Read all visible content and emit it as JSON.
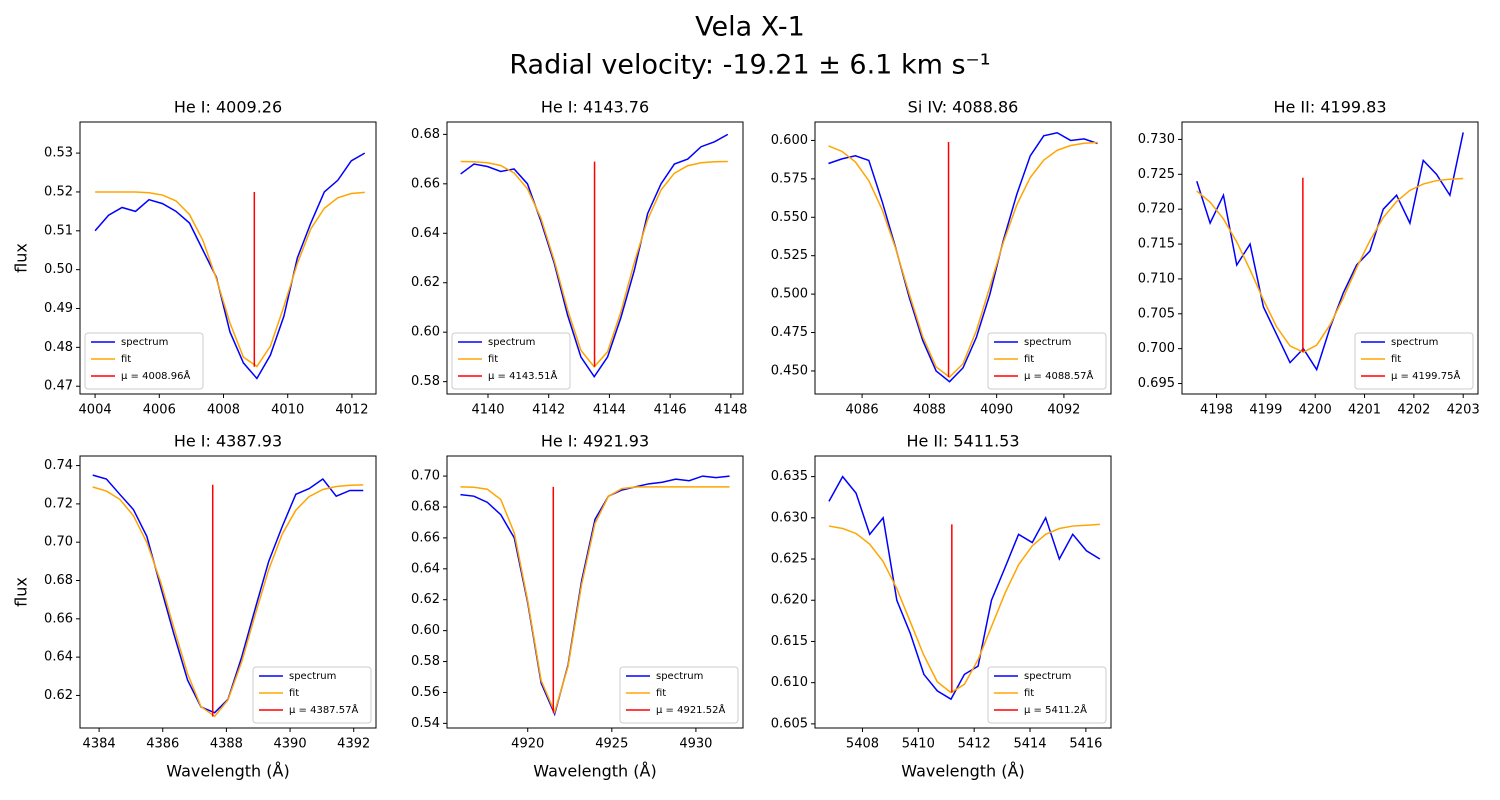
{
  "title": "Vela X-1",
  "subtitle": "Radial velocity: -19.21 ± 6.1 km s⁻¹",
  "chart_data": [
    {
      "type": "line",
      "title": "He I: 4009.26",
      "ylabel": "flux",
      "legend": "lower left",
      "x": [
        4004.0,
        4004.42,
        4004.84,
        4005.26,
        4005.68,
        4006.1,
        4006.52,
        4006.94,
        4007.36,
        4007.78,
        4008.2,
        4008.62,
        4009.04,
        4009.46,
        4009.88,
        4010.3,
        4010.72,
        4011.14,
        4011.56,
        4011.98,
        4012.4
      ],
      "series": [
        {
          "name": "spectrum",
          "color": "blue",
          "values": [
            0.51,
            0.514,
            0.516,
            0.515,
            0.518,
            0.517,
            0.515,
            0.512,
            0.505,
            0.498,
            0.484,
            0.476,
            0.472,
            0.478,
            0.488,
            0.503,
            0.512,
            0.52,
            0.523,
            0.528,
            0.53
          ]
        },
        {
          "name": "fit",
          "color": "orange",
          "values": [
            0.52,
            0.52,
            0.52,
            0.52,
            0.5198,
            0.5192,
            0.5177,
            0.5142,
            0.5075,
            0.4976,
            0.4863,
            0.4775,
            0.4751,
            0.4803,
            0.4905,
            0.5016,
            0.5105,
            0.5158,
            0.5185,
            0.5196,
            0.5199
          ]
        }
      ],
      "vline": {
        "name": "μ = 4008.96Å",
        "color": "red",
        "x": 4008.96,
        "values": [
          0.475,
          0.52
        ]
      },
      "xlim": [
        4003.53,
        4012.75
      ],
      "xticks": [
        4004,
        4006,
        4008,
        4010,
        4012
      ],
      "ylim": [
        0.468,
        0.538
      ],
      "yticks": [
        0.47,
        0.48,
        0.49,
        {
          "value": 0.5,
          "label": "0.50"
        },
        0.51,
        0.52,
        0.53
      ]
    },
    {
      "type": "line",
      "title": "He I: 4143.76",
      "legend": "lower left",
      "x": [
        4139.1,
        4139.54,
        4139.98,
        4140.42,
        4140.86,
        4141.3,
        4141.74,
        4142.18,
        4142.62,
        4143.06,
        4143.5,
        4143.94,
        4144.38,
        4144.82,
        4145.26,
        4145.7,
        4146.14,
        4146.58,
        4147.02,
        4147.46,
        4147.9
      ],
      "series": [
        {
          "name": "spectrum",
          "color": "blue",
          "values": [
            0.664,
            0.668,
            0.667,
            0.665,
            0.666,
            0.66,
            0.645,
            0.628,
            0.607,
            0.59,
            0.582,
            0.59,
            0.606,
            0.625,
            0.648,
            0.66,
            0.668,
            0.67,
            0.675,
            0.677,
            0.68
          ]
        },
        {
          "name": "fit",
          "color": "orange",
          "values": [
            0.669,
            0.6689,
            0.6685,
            0.6674,
            0.6644,
            0.658,
            0.6462,
            0.6291,
            0.6092,
            0.5927,
            0.586,
            0.5921,
            0.6083,
            0.6282,
            0.6456,
            0.6575,
            0.6643,
            0.6673,
            0.6685,
            0.6689,
            0.669
          ]
        }
      ],
      "vline": {
        "name": "μ = 4143.51Å",
        "color": "red",
        "x": 4143.51,
        "values": [
          0.586,
          0.669
        ]
      },
      "xlim": [
        4138.65,
        4148.4
      ],
      "xticks": [
        4140,
        4142,
        4144,
        4146,
        4148
      ],
      "ylim": [
        0.575,
        0.685
      ],
      "yticks": [
        0.58,
        {
          "value": 0.6,
          "label": "0.60"
        },
        0.62,
        0.64,
        0.66,
        0.68
      ]
    },
    {
      "type": "line",
      "title": "Si IV: 4088.86",
      "legend": "lower right",
      "x": [
        4085.0,
        4085.4,
        4085.8,
        4086.2,
        4086.6,
        4087.0,
        4087.4,
        4087.8,
        4088.2,
        4088.6,
        4089.0,
        4089.4,
        4089.8,
        4090.2,
        4090.6,
        4091.0,
        4091.4,
        4091.8,
        4092.2,
        4092.6,
        4093.0
      ],
      "series": [
        {
          "name": "spectrum",
          "color": "blue",
          "values": [
            0.585,
            0.588,
            0.59,
            0.587,
            0.56,
            0.53,
            0.498,
            0.47,
            0.45,
            0.443,
            0.452,
            0.472,
            0.5,
            0.535,
            0.565,
            0.59,
            0.603,
            0.605,
            0.6,
            0.601,
            0.598
          ]
        },
        {
          "name": "fit",
          "color": "orange",
          "values": [
            0.5964,
            0.5929,
            0.586,
            0.5738,
            0.5548,
            0.5295,
            0.5003,
            0.4725,
            0.4526,
            0.446,
            0.4547,
            0.4763,
            0.5048,
            0.5337,
            0.5581,
            0.5759,
            0.5872,
            0.5936,
            0.5967,
            0.5982,
            0.5987
          ]
        }
      ],
      "vline": {
        "name": "μ = 4088.57Å",
        "color": "red",
        "x": 4088.57,
        "values": [
          0.446,
          0.599
        ]
      },
      "xlim": [
        4084.6,
        4093.4
      ],
      "xticks": [
        4086,
        4088,
        4090,
        4092
      ],
      "ylim": [
        0.435,
        0.612
      ],
      "yticks": [
        {
          "value": 0.45,
          "label": "0.450"
        },
        0.475,
        {
          "value": 0.5,
          "label": "0.500"
        },
        0.525,
        {
          "value": 0.55,
          "label": "0.550"
        },
        0.575,
        {
          "value": 0.6,
          "label": "0.600"
        }
      ]
    },
    {
      "type": "line",
      "title": "He II: 4199.83",
      "legend": "lower right",
      "x": [
        4197.6,
        4197.87,
        4198.14,
        4198.41,
        4198.68,
        4198.95,
        4199.22,
        4199.49,
        4199.76,
        4200.03,
        4200.3,
        4200.57,
        4200.84,
        4201.11,
        4201.38,
        4201.65,
        4201.92,
        4202.19,
        4202.46,
        4202.73,
        4203.0
      ],
      "series": [
        {
          "name": "spectrum",
          "color": "blue",
          "values": [
            0.724,
            0.718,
            0.722,
            0.712,
            0.715,
            0.706,
            0.702,
            0.698,
            0.7,
            0.697,
            0.703,
            0.708,
            0.712,
            0.714,
            0.72,
            0.722,
            0.718,
            0.727,
            0.725,
            0.722,
            0.731
          ]
        },
        {
          "name": "fit",
          "color": "orange",
          "values": [
            0.7226,
            0.721,
            0.7186,
            0.7153,
            0.7113,
            0.707,
            0.7031,
            0.7004,
            0.6995,
            0.7005,
            0.7034,
            0.7073,
            0.7116,
            0.7155,
            0.7188,
            0.7211,
            0.7227,
            0.7236,
            0.7241,
            0.7243,
            0.7244
          ]
        }
      ],
      "vline": {
        "name": "μ = 4199.75Å",
        "color": "red",
        "x": 4199.75,
        "values": [
          0.6995,
          0.7245
        ]
      },
      "xlim": [
        4197.3,
        4203.3
      ],
      "xticks": [
        4198,
        4199,
        4200,
        4201,
        4202,
        4203
      ],
      "ylim": [
        0.6935,
        0.7325
      ],
      "yticks": [
        0.695,
        {
          "value": 0.7,
          "label": "0.700"
        },
        0.705,
        {
          "value": 0.71,
          "label": "0.710"
        },
        0.715,
        {
          "value": 0.72,
          "label": "0.720"
        },
        0.725,
        {
          "value": 0.73,
          "label": "0.730"
        }
      ]
    },
    {
      "type": "line",
      "title": "He I: 4387.93",
      "ylabel": "flux",
      "xlabel": "Wavelength (Å)",
      "legend": "lower right",
      "x": [
        4383.8,
        4384.23,
        4384.65,
        4385.08,
        4385.5,
        4385.93,
        4386.35,
        4386.78,
        4387.2,
        4387.63,
        4388.05,
        4388.48,
        4388.9,
        4389.33,
        4389.75,
        4390.18,
        4390.6,
        4391.03,
        4391.45,
        4391.88,
        4392.3
      ],
      "series": [
        {
          "name": "spectrum",
          "color": "blue",
          "values": [
            0.735,
            0.733,
            0.725,
            0.717,
            0.703,
            0.677,
            0.652,
            0.628,
            0.614,
            0.611,
            0.618,
            0.64,
            0.665,
            0.69,
            0.708,
            0.725,
            0.728,
            0.733,
            0.724,
            0.727,
            0.727
          ]
        },
        {
          "name": "fit",
          "color": "orange",
          "values": [
            0.7288,
            0.7267,
            0.7224,
            0.7138,
            0.6999,
            0.6794,
            0.6553,
            0.6313,
            0.6142,
            0.6091,
            0.6177,
            0.6376,
            0.6619,
            0.6857,
            0.7041,
            0.7167,
            0.7238,
            0.7275,
            0.7291,
            0.7297,
            0.7299
          ]
        }
      ],
      "vline": {
        "name": "μ = 4387.57Å",
        "color": "red",
        "x": 4387.57,
        "values": [
          0.609,
          0.73
        ]
      },
      "xlim": [
        4383.4,
        4392.7
      ],
      "xticks": [
        4384,
        4386,
        4388,
        4390,
        4392
      ],
      "ylim": [
        0.603,
        0.745
      ],
      "yticks": [
        0.62,
        0.64,
        0.66,
        0.68,
        {
          "value": 0.7,
          "label": "0.70"
        },
        0.72,
        0.74
      ]
    },
    {
      "type": "line",
      "title": "He I: 4921.93",
      "xlabel": "Wavelength (Å)",
      "legend": "lower right",
      "x": [
        4916.0,
        4916.8,
        4917.6,
        4918.4,
        4919.2,
        4920.0,
        4920.8,
        4921.6,
        4922.4,
        4923.2,
        4924.0,
        4924.8,
        4925.6,
        4926.4,
        4927.2,
        4928.0,
        4928.8,
        4929.6,
        4930.4,
        4931.2,
        4932.0
      ],
      "series": [
        {
          "name": "spectrum",
          "color": "blue",
          "values": [
            0.688,
            0.687,
            0.683,
            0.675,
            0.66,
            0.618,
            0.566,
            0.546,
            0.578,
            0.632,
            0.672,
            0.687,
            0.691,
            0.693,
            0.695,
            0.696,
            0.698,
            0.697,
            0.7,
            0.699,
            0.7
          ]
        },
        {
          "name": "fit",
          "color": "orange",
          "values": [
            0.693,
            0.6928,
            0.6915,
            0.6848,
            0.6632,
            0.6193,
            0.5677,
            0.5473,
            0.5769,
            0.6296,
            0.6694,
            0.6869,
            0.6919,
            0.6929,
            0.693,
            0.693,
            0.693,
            0.693,
            0.693,
            0.693,
            0.693
          ]
        }
      ],
      "vline": {
        "name": "μ = 4921.52Å",
        "color": "red",
        "x": 4921.52,
        "values": [
          0.547,
          0.693
        ]
      },
      "xlim": [
        4915.2,
        4932.8
      ],
      "xticks": [
        4920,
        4925,
        4930
      ],
      "ylim": [
        0.537,
        0.713
      ],
      "yticks": [
        0.54,
        0.56,
        0.58,
        {
          "value": 0.6,
          "label": "0.60"
        },
        0.62,
        0.64,
        0.66,
        0.68,
        {
          "value": 0.7,
          "label": "0.70"
        }
      ]
    },
    {
      "type": "line",
      "title": "He II: 5411.53",
      "xlabel": "Wavelength (Å)",
      "legend": "lower right",
      "x": [
        5406.8,
        5407.29,
        5407.77,
        5408.26,
        5408.74,
        5409.23,
        5409.71,
        5410.2,
        5410.68,
        5411.17,
        5411.65,
        5412.14,
        5412.62,
        5413.11,
        5413.59,
        5414.08,
        5414.56,
        5415.05,
        5415.53,
        5416.02,
        5416.5
      ],
      "series": [
        {
          "name": "spectrum",
          "color": "blue",
          "values": [
            0.632,
            0.635,
            0.633,
            0.628,
            0.63,
            0.62,
            0.616,
            0.611,
            0.609,
            0.608,
            0.611,
            0.612,
            0.62,
            0.624,
            0.628,
            0.627,
            0.63,
            0.625,
            0.628,
            0.626,
            0.625
          ]
        },
        {
          "name": "fit",
          "color": "orange",
          "values": [
            0.629,
            0.6287,
            0.6281,
            0.6268,
            0.6247,
            0.6214,
            0.6174,
            0.6133,
            0.6101,
            0.6088,
            0.6098,
            0.6128,
            0.6168,
            0.6209,
            0.6243,
            0.6266,
            0.628,
            0.6287,
            0.629,
            0.6291,
            0.6292
          ]
        }
      ],
      "vline": {
        "name": "μ = 5411.2Å",
        "color": "red",
        "x": 5411.2,
        "values": [
          0.6088,
          0.6292
        ]
      },
      "xlim": [
        5406.3,
        5416.9
      ],
      "xticks": [
        5408,
        5410,
        5412,
        5414,
        5416
      ],
      "ylim": [
        0.6045,
        0.6375
      ],
      "yticks": [
        0.605,
        {
          "value": 0.61,
          "label": "0.610"
        },
        0.615,
        {
          "value": 0.62,
          "label": "0.620"
        },
        0.625,
        {
          "value": 0.63,
          "label": "0.630"
        },
        0.635
      ]
    }
  ]
}
